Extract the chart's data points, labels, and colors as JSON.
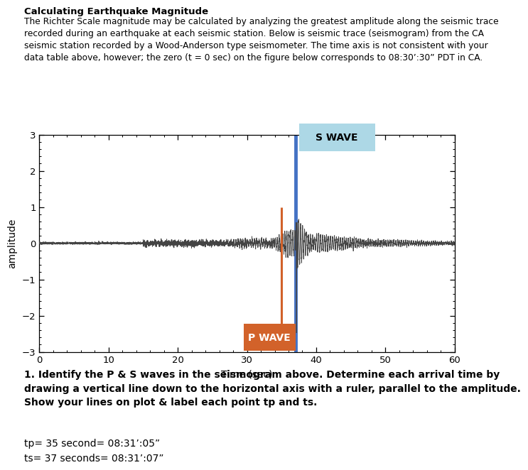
{
  "title_bold": "Calculating Earthquake Magnitude",
  "description": "The Richter Scale magnitude may be calculated by analyzing the greatest amplitude along the seismic trace\nrecorded during an earthquake at each seismic station. Below is seismic trace (seismogram) from the CA\nseismic station recorded by a Wood-Anderson type seismometer. The time axis is not consistent with your\ndata table above, however; the zero (t = 0 sec) on the figure below corresponds to 08:30’:30” PDT in CA.",
  "xlabel": "Time (sec)",
  "ylabel": "amplitude",
  "xlim": [
    0,
    60
  ],
  "ylim": [
    -3,
    3
  ],
  "xticks": [
    0,
    10,
    20,
    30,
    40,
    50,
    60
  ],
  "yticks": [
    -3,
    -2,
    -1,
    0,
    1,
    2,
    3
  ],
  "p_wave_x": 35,
  "s_wave_x": 37,
  "p_wave_color": "#D2622A",
  "s_wave_color": "#4472C4",
  "s_wave_bg": "#ADD8E6",
  "p_label": "P WAVE",
  "s_label": "S WAVE",
  "question_text": "1. Identify the P & S waves in the seismogram above. Determine each arrival time by\ndrawing a vertical line down to the horizontal axis with a ruler, parallel to the amplitude.\nShow your lines on plot & label each point tp and ts.",
  "answer_line1": "tp= 35 second= 08:31’:05”",
  "answer_line2": "ts= 37 seconds= 08:31’:07”",
  "background_color": "#ffffff",
  "seismic_color": "#444444"
}
